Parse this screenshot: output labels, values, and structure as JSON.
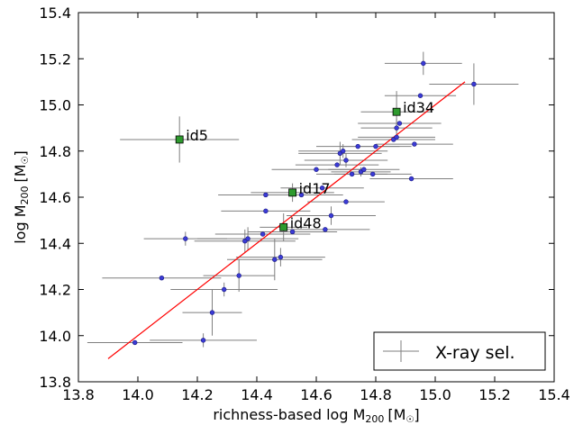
{
  "chart_data": {
    "type": "scatter",
    "xlabel": "richness-based log M",
    "xlabel_sub": "200",
    "xlabel_unit": "[M",
    "xlabel_unit_sym": "☉",
    "xlabel_close": "]",
    "ylabel": "log M",
    "ylabel_sub": "200",
    "ylabel_unit": "[M",
    "ylabel_unit_sym": "☉",
    "ylabel_close": "]",
    "xlim": [
      13.8,
      15.4
    ],
    "ylim": [
      13.8,
      15.4
    ],
    "xticks": [
      13.8,
      14.0,
      14.2,
      14.4,
      14.6,
      14.8,
      15.0,
      15.2,
      15.4
    ],
    "yticks": [
      13.8,
      14.0,
      14.2,
      14.4,
      14.6,
      14.8,
      15.0,
      15.2,
      15.4
    ],
    "tick_labels": [
      "13.8",
      "14.0",
      "14.2",
      "14.4",
      "14.6",
      "14.8",
      "15.0",
      "15.2",
      "15.4"
    ],
    "legend": {
      "label": "X-ray sel.",
      "placement": "bottom-right"
    },
    "colors": {
      "points": "#3b3bd6",
      "highlight": "#2e9a2e",
      "fit": "#ff0000",
      "errorbar": "#7f7f7f"
    },
    "fit_line": {
      "x": [
        13.9,
        15.1
      ],
      "y": [
        13.9,
        15.1
      ]
    },
    "series": [
      {
        "name": "X-ray sel.",
        "points": [
          {
            "x": 13.99,
            "y": 13.97,
            "xerr": 0.16,
            "yerr": 0.0
          },
          {
            "x": 14.08,
            "y": 14.25,
            "xerr": 0.2,
            "yerr": 0.0
          },
          {
            "x": 14.16,
            "y": 14.42,
            "xerr": 0.14,
            "yerr": 0.03
          },
          {
            "x": 14.22,
            "y": 13.98,
            "xerr": 0.18,
            "yerr": 0.03
          },
          {
            "x": 14.25,
            "y": 14.1,
            "xerr": 0.1,
            "yerr": 0.1
          },
          {
            "x": 14.29,
            "y": 14.2,
            "xerr": 0.18,
            "yerr": 0.03
          },
          {
            "x": 14.34,
            "y": 14.26,
            "xerr": 0.12,
            "yerr": 0.07
          },
          {
            "x": 14.36,
            "y": 14.41,
            "xerr": 0.17,
            "yerr": 0.05
          },
          {
            "x": 14.37,
            "y": 14.42,
            "xerr": 0.17,
            "yerr": 0.05
          },
          {
            "x": 14.42,
            "y": 14.44,
            "xerr": 0.16,
            "yerr": 0.0
          },
          {
            "x": 14.43,
            "y": 14.54,
            "xerr": 0.15,
            "yerr": 0.0
          },
          {
            "x": 14.43,
            "y": 14.61,
            "xerr": 0.16,
            "yerr": 0.0
          },
          {
            "x": 14.46,
            "y": 14.33,
            "xerr": 0.16,
            "yerr": 0.09
          },
          {
            "x": 14.48,
            "y": 14.34,
            "xerr": 0.15,
            "yerr": 0.04
          },
          {
            "x": 14.52,
            "y": 14.45,
            "xerr": 0.15,
            "yerr": 0.0
          },
          {
            "x": 14.55,
            "y": 14.61,
            "xerr": 0.14,
            "yerr": 0.0
          },
          {
            "x": 14.6,
            "y": 14.72,
            "xerr": 0.15,
            "yerr": 0.0
          },
          {
            "x": 14.62,
            "y": 14.64,
            "xerr": 0.14,
            "yerr": 0.0
          },
          {
            "x": 14.63,
            "y": 14.46,
            "xerr": 0.15,
            "yerr": 0.0
          },
          {
            "x": 14.65,
            "y": 14.52,
            "xerr": 0.15,
            "yerr": 0.04
          },
          {
            "x": 14.67,
            "y": 14.74,
            "xerr": 0.14,
            "yerr": 0.0
          },
          {
            "x": 14.68,
            "y": 14.79,
            "xerr": 0.14,
            "yerr": 0.05
          },
          {
            "x": 14.69,
            "y": 14.8,
            "xerr": 0.15,
            "yerr": 0.03
          },
          {
            "x": 14.7,
            "y": 14.58,
            "xerr": 0.13,
            "yerr": 0.0
          },
          {
            "x": 14.7,
            "y": 14.76,
            "xerr": 0.14,
            "yerr": 0.03
          },
          {
            "x": 14.72,
            "y": 14.7,
            "xerr": 0.12,
            "yerr": 0.0
          },
          {
            "x": 14.74,
            "y": 14.82,
            "xerr": 0.14,
            "yerr": 0.0
          },
          {
            "x": 14.75,
            "y": 14.71,
            "xerr": 0.1,
            "yerr": 0.02
          },
          {
            "x": 14.76,
            "y": 14.72,
            "xerr": 0.12,
            "yerr": 0.0
          },
          {
            "x": 14.79,
            "y": 14.7,
            "xerr": 0.13,
            "yerr": 0.0
          },
          {
            "x": 14.8,
            "y": 14.82,
            "xerr": 0.12,
            "yerr": 0.0
          },
          {
            "x": 14.86,
            "y": 14.85,
            "xerr": 0.14,
            "yerr": 0.0
          },
          {
            "x": 14.87,
            "y": 14.9,
            "xerr": 0.12,
            "yerr": 0.04
          },
          {
            "x": 14.87,
            "y": 14.86,
            "xerr": 0.13,
            "yerr": 0.0
          },
          {
            "x": 14.88,
            "y": 14.92,
            "xerr": 0.14,
            "yerr": 0.0
          },
          {
            "x": 14.92,
            "y": 14.68,
            "xerr": 0.14,
            "yerr": 0.0
          },
          {
            "x": 14.93,
            "y": 14.83,
            "xerr": 0.13,
            "yerr": 0.0
          },
          {
            "x": 14.95,
            "y": 15.04,
            "xerr": 0.12,
            "yerr": 0.0
          },
          {
            "x": 14.96,
            "y": 15.18,
            "xerr": 0.13,
            "yerr": 0.05
          },
          {
            "x": 15.13,
            "y": 15.09,
            "xerr": 0.15,
            "yerr": 0.09
          }
        ]
      },
      {
        "name": "",
        "highlight": true,
        "points": [
          {
            "x": 14.14,
            "y": 14.85,
            "xerr": 0.2,
            "yerr": 0.1,
            "label": "id5"
          },
          {
            "x": 14.52,
            "y": 14.62,
            "xerr": 0.14,
            "yerr": 0.04,
            "label": "id17"
          },
          {
            "x": 14.49,
            "y": 14.47,
            "xerr": 0.08,
            "yerr": 0.06,
            "label": "id48"
          },
          {
            "x": 14.87,
            "y": 14.97,
            "xerr": 0.12,
            "yerr": 0.09,
            "label": "id34"
          }
        ]
      }
    ]
  }
}
